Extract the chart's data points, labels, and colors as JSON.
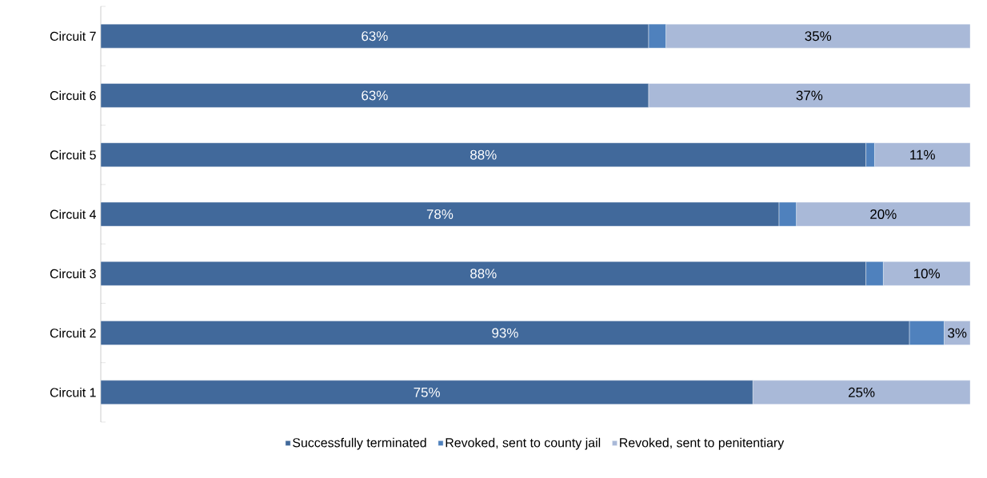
{
  "chart_data": {
    "type": "bar",
    "orientation": "horizontal",
    "stacked": true,
    "legend": "bottom",
    "categories": [
      "Circuit 7",
      "Circuit 6",
      "Circuit 5",
      "Circuit 4",
      "Circuit 3",
      "Circuit 2",
      "Circuit 1"
    ],
    "series": [
      {
        "name": "Successfully terminated",
        "color": "#41699b",
        "values": [
          63,
          63,
          88,
          78,
          88,
          93,
          75
        ],
        "value_labels": [
          "63%",
          "63%",
          "88%",
          "78%",
          "88%",
          "93%",
          "75%"
        ]
      },
      {
        "name": "Revoked, sent to county jail",
        "color": "#4f81bd",
        "values": [
          2,
          0,
          1,
          2,
          2,
          4,
          0
        ],
        "value_labels": [
          null,
          null,
          null,
          null,
          null,
          null,
          null
        ]
      },
      {
        "name": "Revoked, sent to penitentiary",
        "color": "#a9b9d8",
        "values": [
          35,
          37,
          11,
          20,
          10,
          3,
          25
        ],
        "value_labels": [
          "35%",
          "37%",
          "11%",
          "20%",
          "10%",
          "3%",
          "25%"
        ]
      }
    ]
  }
}
